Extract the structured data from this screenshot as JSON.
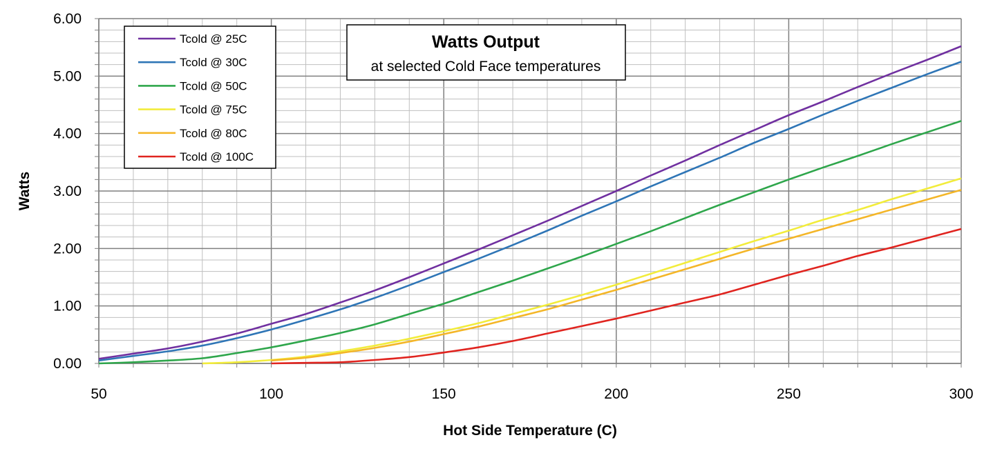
{
  "chart_data": {
    "type": "line",
    "title": "Watts Output",
    "subtitle": "at selected Cold Face temperatures",
    "xlabel": "Hot Side Temperature (C)",
    "ylabel": "Watts",
    "xlim": [
      50,
      300
    ],
    "ylim": [
      0,
      6
    ],
    "x_ticks": [
      "50",
      "100",
      "150",
      "200",
      "250",
      "300"
    ],
    "y_ticks": [
      "0.00",
      "1.00",
      "2.00",
      "3.00",
      "4.00",
      "5.00",
      "6.00"
    ],
    "grid": true,
    "legend_position": "top-left",
    "x": [
      50,
      60,
      70,
      80,
      90,
      100,
      110,
      120,
      130,
      140,
      150,
      160,
      170,
      180,
      190,
      200,
      210,
      220,
      230,
      240,
      250,
      260,
      270,
      280,
      290,
      300
    ],
    "series": [
      {
        "name": "Tcold @ 25C",
        "color": "#7030a0",
        "values": [
          0.08,
          0.17,
          0.26,
          0.38,
          0.52,
          0.69,
          0.86,
          1.06,
          1.27,
          1.5,
          1.74,
          1.98,
          2.23,
          2.48,
          2.74,
          3.0,
          3.27,
          3.53,
          3.8,
          4.06,
          4.32,
          4.56,
          4.81,
          5.05,
          5.28,
          5.52
        ]
      },
      {
        "name": "Tcold @ 30C",
        "color": "#2e75b6",
        "values": [
          0.05,
          0.13,
          0.21,
          0.31,
          0.44,
          0.59,
          0.76,
          0.94,
          1.14,
          1.36,
          1.59,
          1.82,
          2.06,
          2.31,
          2.57,
          2.82,
          3.08,
          3.33,
          3.58,
          3.84,
          4.08,
          4.33,
          4.57,
          4.8,
          5.03,
          5.25
        ]
      },
      {
        "name": "Tcold @ 50C",
        "color": "#2ea64b",
        "values": [
          0.0,
          0.02,
          0.05,
          0.09,
          0.18,
          0.28,
          0.4,
          0.53,
          0.68,
          0.86,
          1.04,
          1.24,
          1.44,
          1.65,
          1.86,
          2.08,
          2.3,
          2.53,
          2.76,
          2.98,
          3.2,
          3.41,
          3.61,
          3.82,
          4.02,
          4.22
        ]
      },
      {
        "name": "Tcold @ 75C",
        "color": "#f2ec3b",
        "values": [
          null,
          null,
          null,
          0.0,
          0.02,
          0.06,
          0.12,
          0.21,
          0.31,
          0.43,
          0.56,
          0.7,
          0.86,
          1.02,
          1.19,
          1.37,
          1.56,
          1.75,
          1.94,
          2.13,
          2.31,
          2.5,
          2.67,
          2.86,
          3.04,
          3.22
        ]
      },
      {
        "name": "Tcold @ 80C",
        "color": "#f4b628",
        "values": [
          null,
          null,
          null,
          null,
          null,
          0.05,
          0.1,
          0.18,
          0.27,
          0.38,
          0.51,
          0.64,
          0.79,
          0.94,
          1.11,
          1.28,
          1.46,
          1.64,
          1.82,
          2.0,
          2.17,
          2.34,
          2.51,
          2.68,
          2.85,
          3.02
        ]
      },
      {
        "name": "Tcold @ 100C",
        "color": "#e0241f",
        "values": [
          null,
          null,
          null,
          null,
          null,
          0.0,
          0.01,
          0.02,
          0.06,
          0.11,
          0.19,
          0.28,
          0.39,
          0.52,
          0.65,
          0.78,
          0.92,
          1.06,
          1.2,
          1.37,
          1.54,
          1.7,
          1.87,
          2.02,
          2.18,
          2.34
        ]
      }
    ]
  }
}
